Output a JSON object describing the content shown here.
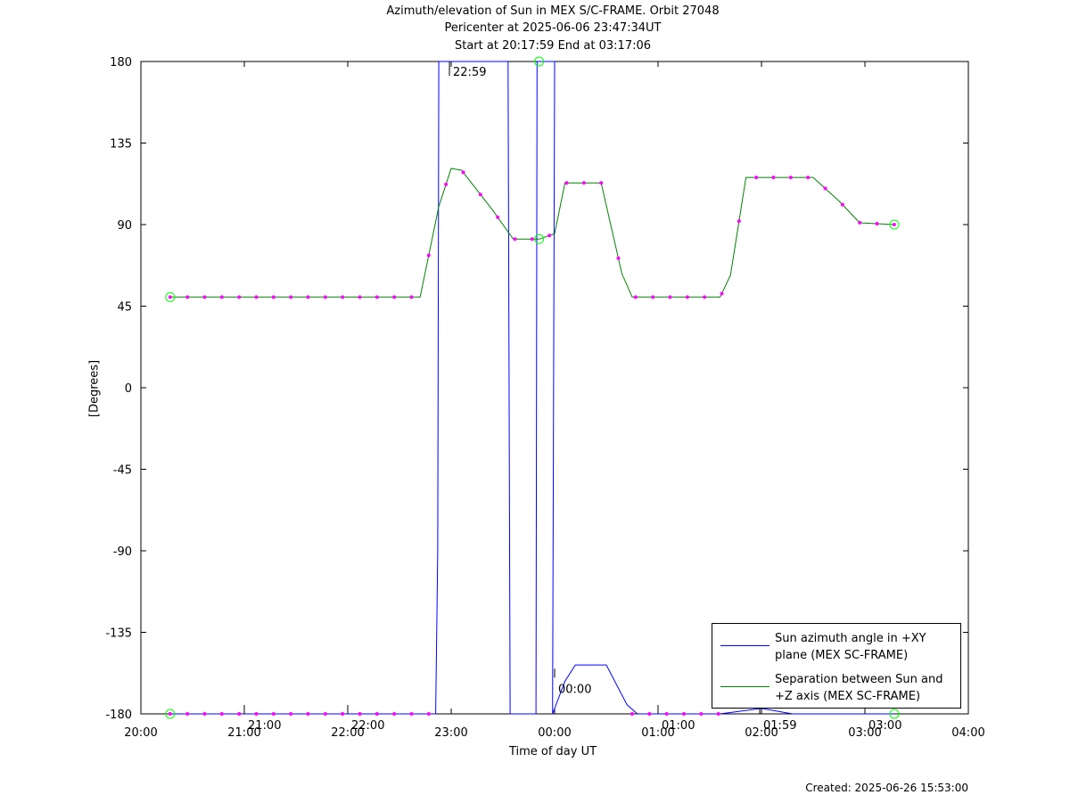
{
  "header": {
    "title": "Azimuth/elevation of Sun in MEX S/C-FRAME.  Orbit 27048",
    "pericenter": "Pericenter at 2025-06-06 23:47:34UT",
    "start_end": "Start at 20:17:59 End at 03:17:06"
  },
  "footer": {
    "created": "Created: 2025-06-26 15:53:00"
  },
  "colors": {
    "azimuth": "#0000ff",
    "separation": "#008000",
    "markers": "#ff00ff",
    "endpoints": "#00ff00"
  },
  "chart_data": {
    "type": "line",
    "xlabel": "Time of day UT",
    "ylabel": "[Degrees]",
    "x_unit": "hours since 20:00",
    "xlim": [
      0,
      8
    ],
    "ylim": [
      -180,
      180
    ],
    "x_ticks": [
      "20:00",
      "21:00",
      "22:00",
      "23:00",
      "00:00",
      "01:00",
      "02:00",
      "03:00",
      "04:00"
    ],
    "y_ticks": [
      180,
      135,
      90,
      45,
      0,
      -45,
      -90,
      -135,
      -180
    ],
    "grid": false,
    "legend_position": "bottom-right",
    "series": [
      {
        "name": "Sun azimuth angle in +XY plane (MEX SC-FRAME)",
        "color": "#0000ff",
        "points": [
          [
            0.283,
            -180
          ],
          [
            2.85,
            -180
          ],
          [
            2.87,
            -90
          ],
          [
            2.88,
            180
          ],
          [
            3.55,
            180
          ],
          [
            3.57,
            -180
          ],
          [
            3.82,
            -180
          ],
          [
            3.83,
            180
          ],
          [
            4.0,
            180
          ],
          [
            3.98,
            -180
          ],
          [
            4.1,
            -162
          ],
          [
            4.2,
            -153
          ],
          [
            4.5,
            -153
          ],
          [
            4.7,
            -175
          ],
          [
            4.8,
            -180
          ],
          [
            5.6,
            -180
          ],
          [
            6.0,
            -177
          ],
          [
            6.3,
            -180
          ],
          [
            6.7,
            -180
          ],
          [
            7.0,
            -180
          ],
          [
            7.285,
            -180
          ]
        ]
      },
      {
        "name": "Separation between Sun and +Z axis (MEX SC-FRAME)",
        "color": "#008000",
        "points": [
          [
            0.283,
            50
          ],
          [
            2.7,
            50
          ],
          [
            2.88,
            100
          ],
          [
            3.0,
            121
          ],
          [
            3.1,
            120
          ],
          [
            3.4,
            98
          ],
          [
            3.6,
            82
          ],
          [
            3.85,
            82
          ],
          [
            4.0,
            85
          ],
          [
            4.1,
            113
          ],
          [
            4.45,
            113
          ],
          [
            4.65,
            63
          ],
          [
            4.75,
            50
          ],
          [
            5.6,
            50
          ],
          [
            5.7,
            62
          ],
          [
            5.85,
            116
          ],
          [
            6.5,
            116
          ],
          [
            6.75,
            103
          ],
          [
            6.95,
            91
          ],
          [
            7.285,
            90
          ]
        ]
      }
    ],
    "labels": [
      {
        "text": "22:59",
        "x": 2.983,
        "y": 180
      },
      {
        "text": "00:00",
        "x": 4.0,
        "y": -160
      },
      {
        "text": "21:00",
        "x": 1.0,
        "y": -180
      },
      {
        "text": "22:00",
        "x": 2.0,
        "y": -180
      },
      {
        "text": "01:00",
        "x": 5.0,
        "y": -180
      },
      {
        "text": "01:59",
        "x": 5.983,
        "y": -180
      },
      {
        "text": "03:00",
        "x": 7.0,
        "y": -180
      }
    ]
  }
}
